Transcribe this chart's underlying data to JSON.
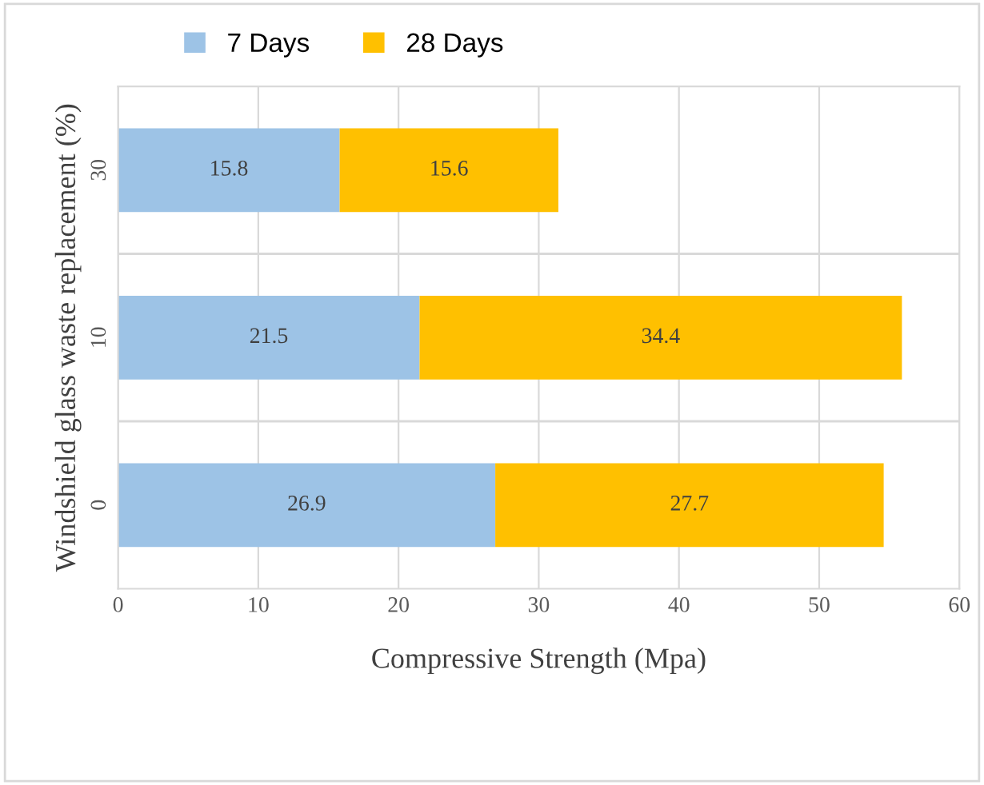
{
  "chart_data": {
    "type": "bar",
    "orientation": "horizontal",
    "stacked": true,
    "xlabel": "Compressive Strength (Mpa)",
    "ylabel": "Windshield glass waste replacement (%)",
    "categories": [
      "30",
      "10",
      "0"
    ],
    "series": [
      {
        "name": "7 Days",
        "color": "#9dc3e6",
        "values": [
          15.8,
          21.5,
          26.9
        ]
      },
      {
        "name": "28 Days",
        "color": "#ffc000",
        "values": [
          15.6,
          34.4,
          27.7
        ]
      }
    ],
    "xlim": [
      0,
      60
    ],
    "xticks": [
      0,
      10,
      20,
      30,
      40,
      50,
      60
    ],
    "grid": "x",
    "legend": "top",
    "data_labels": true
  }
}
